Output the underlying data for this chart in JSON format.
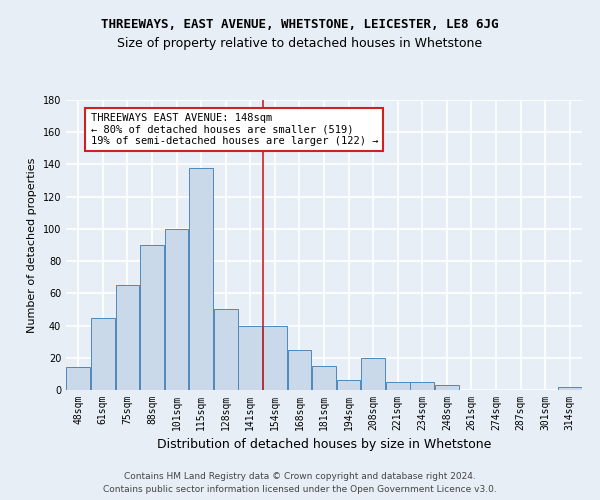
{
  "title": "THREEWAYS, EAST AVENUE, WHETSTONE, LEICESTER, LE8 6JG",
  "subtitle": "Size of property relative to detached houses in Whetstone",
  "xlabel": "Distribution of detached houses by size in Whetstone",
  "ylabel": "Number of detached properties",
  "footnote1": "Contains HM Land Registry data © Crown copyright and database right 2024.",
  "footnote2": "Contains public sector information licensed under the Open Government Licence v3.0.",
  "categories": [
    "48sqm",
    "61sqm",
    "75sqm",
    "88sqm",
    "101sqm",
    "115sqm",
    "128sqm",
    "141sqm",
    "154sqm",
    "168sqm",
    "181sqm",
    "194sqm",
    "208sqm",
    "221sqm",
    "234sqm",
    "248sqm",
    "261sqm",
    "274sqm",
    "287sqm",
    "301sqm",
    "314sqm"
  ],
  "values": [
    14,
    45,
    65,
    90,
    100,
    138,
    50,
    40,
    40,
    25,
    15,
    6,
    20,
    5,
    5,
    3,
    0,
    0,
    0,
    0,
    2
  ],
  "bar_color": "#c9d9ea",
  "bar_edge_color": "#4d88bb",
  "vline_color": "#cc2222",
  "annotation_line1": "THREEWAYS EAST AVENUE: 148sqm",
  "annotation_line2": "← 80% of detached houses are smaller (519)",
  "annotation_line3": "19% of semi-detached houses are larger (122) →",
  "annotation_box_facecolor": "#ffffff",
  "annotation_box_edgecolor": "#cc2222",
  "ylim": [
    0,
    180
  ],
  "yticks": [
    0,
    20,
    40,
    60,
    80,
    100,
    120,
    140,
    160,
    180
  ],
  "bg_color": "#e8eef6",
  "plot_bg_color": "#e8eef6",
  "grid_color": "#ffffff",
  "title_fontsize": 9,
  "subtitle_fontsize": 9,
  "xlabel_fontsize": 9,
  "ylabel_fontsize": 8,
  "tick_fontsize": 7,
  "annotation_fontsize": 7.5,
  "footnote_fontsize": 6.5,
  "vline_x_index": 7.5
}
